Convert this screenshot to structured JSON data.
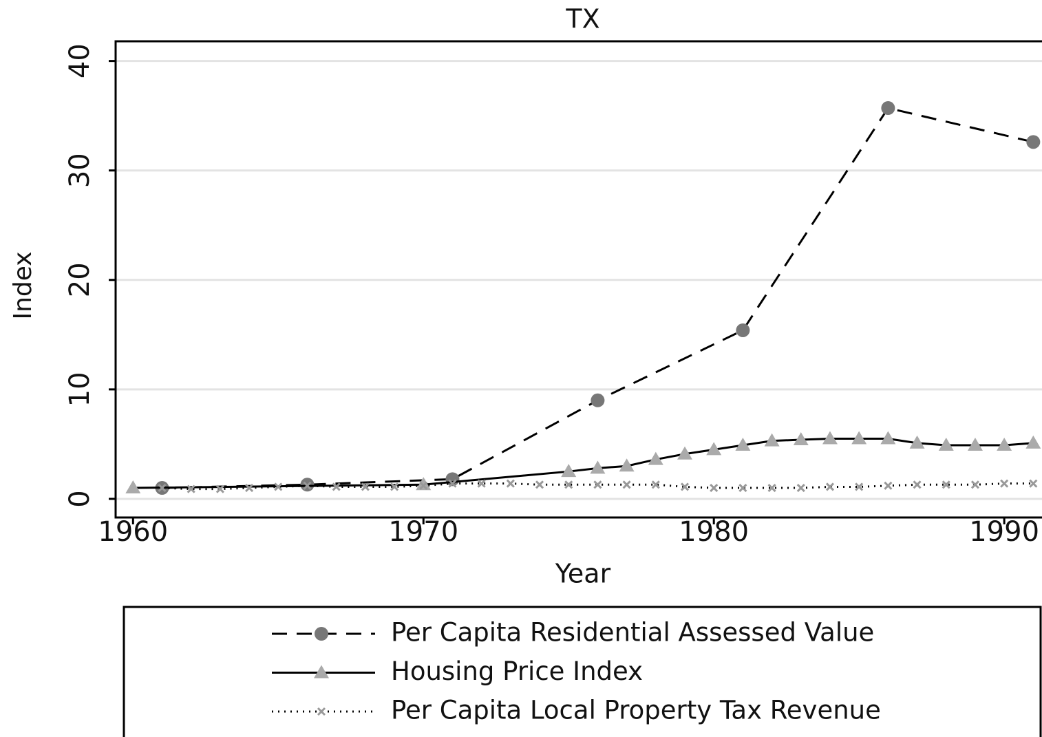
{
  "chart_data": {
    "type": "line",
    "title": "TX",
    "x_label": "Year",
    "y_label": "Index",
    "xlim": [
      1959.4,
      1991.3
    ],
    "xticks": [
      1960,
      1970,
      1980,
      1990
    ],
    "ylim": [
      -1.7,
      41.8
    ],
    "yticks": [
      0,
      10,
      20,
      30,
      40
    ],
    "grid": true,
    "series": [
      {
        "name": "Per Capita Residential Assessed Value",
        "color": "#777777",
        "dash": "dashed",
        "marker": "circle",
        "x": [
          1961,
          1966,
          1971,
          1976,
          1981,
          1986,
          1991
        ],
        "values": [
          1.0,
          1.3,
          1.8,
          9.0,
          15.4,
          35.7,
          32.6
        ]
      },
      {
        "name": "Housing Price Index",
        "color": "#aaaaaa",
        "dash": "solid",
        "marker": "triangle",
        "x": [
          1960,
          1970,
          1975,
          1976,
          1977,
          1978,
          1979,
          1980,
          1981,
          1982,
          1983,
          1984,
          1985,
          1986,
          1987,
          1988,
          1989,
          1990,
          1991
        ],
        "values": [
          1.0,
          1.3,
          2.5,
          2.8,
          3.0,
          3.6,
          4.1,
          4.5,
          4.9,
          5.3,
          5.4,
          5.5,
          5.5,
          5.5,
          5.1,
          4.9,
          4.9,
          4.9,
          5.1
        ]
      },
      {
        "name": "Per Capita Local Property Tax Revenue",
        "color": "#999999",
        "dash": "dotted",
        "marker": "x",
        "x": [
          1961,
          1962,
          1963,
          1964,
          1965,
          1966,
          1967,
          1968,
          1969,
          1970,
          1971,
          1972,
          1973,
          1974,
          1975,
          1976,
          1977,
          1978,
          1979,
          1980,
          1981,
          1982,
          1983,
          1984,
          1985,
          1986,
          1987,
          1988,
          1989,
          1990,
          1991
        ],
        "values": [
          1.0,
          0.9,
          0.9,
          1.0,
          1.1,
          1.2,
          1.1,
          1.1,
          1.1,
          1.2,
          1.4,
          1.4,
          1.4,
          1.3,
          1.3,
          1.3,
          1.3,
          1.3,
          1.1,
          1.0,
          1.0,
          1.0,
          1.0,
          1.1,
          1.1,
          1.2,
          1.3,
          1.3,
          1.3,
          1.4,
          1.4
        ]
      }
    ]
  }
}
